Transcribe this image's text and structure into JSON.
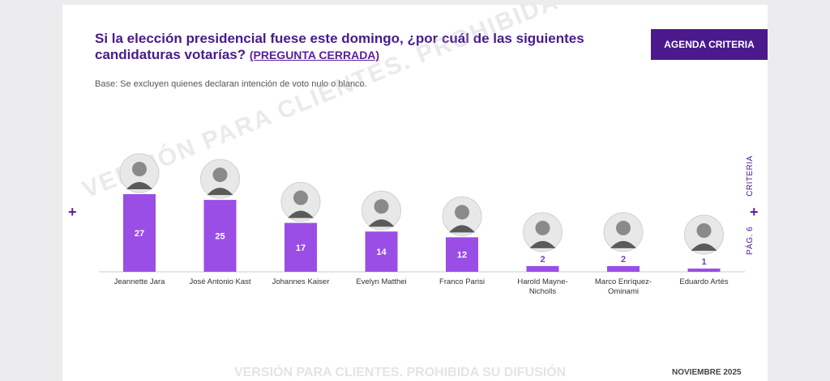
{
  "header": {
    "title": "Si la elección presidencial fuese este domingo, ¿por cuál de las siguientes candidaturas votarías?",
    "title_note": "(PREGUNTA CERRADA)",
    "agenda_button": "AGENDA CRITERIA",
    "base_note": "Base: Se excluyen quienes declaran intención de voto nulo o blanco."
  },
  "side": {
    "brand": "CRITERIA",
    "page": "PÁG. 6"
  },
  "watermark": "VERSIÓN PARA CLIENTES. PROHIBIDA SU DIFUSIÓN",
  "footer": {
    "watermark": "VERSIÓN PARA CLIENTES. PROHIBIDA SU DIFUSIÓN",
    "date": "NOVIEMBRE 2025"
  },
  "colors": {
    "bar": "#9a4ee6",
    "accent": "#4a1a8c",
    "label_inside": "#ffffff",
    "label_outside": "#7a3cc8"
  },
  "chart_data": {
    "type": "bar",
    "categories": [
      "Jeannette Jara",
      "José Antonio Kast",
      "Johannes Kaiser",
      "Evelyn Matthei",
      "Franco Parisi",
      "Harold Mayne-Nicholls",
      "Marco Enríquez-Ominami",
      "Eduardo Artés"
    ],
    "values": [
      27,
      25,
      17,
      14,
      12,
      2,
      2,
      1
    ],
    "title": "",
    "xlabel": "",
    "ylabel": "",
    "ylim": [
      0,
      30
    ],
    "grid": false,
    "legend": "none"
  }
}
